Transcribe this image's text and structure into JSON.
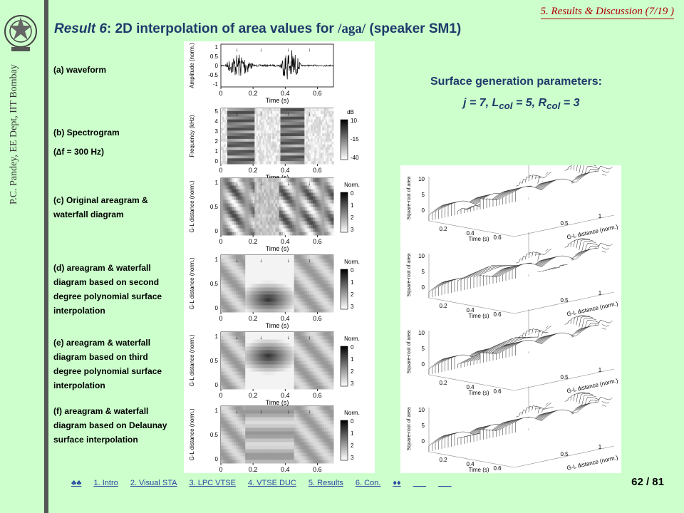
{
  "header": {
    "section": "5. Results & Discussion (7/19 )"
  },
  "title": {
    "prefix": "Result 6",
    "main": ": 2D interpolation of area values for ",
    "phoneme": "/aga/",
    "suffix": " (speaker SM1)"
  },
  "sidebar": {
    "author": "P.C. Pandey, EE Dept, IIT Bombay"
  },
  "labels": {
    "a": "(a) waveform",
    "b1": "(b) Spectrogram",
    "b2": "(∆f = 300 Hz)",
    "c": "(c) Original areagram & waterfall diagram",
    "d": "(d) areagram & waterfall diagram based on second degree polynomial surface interpolation",
    "e": "(e) areagram & waterfall diagram based on third degree polynomial surface interpolation",
    "f": "(f) areagram & waterfall diagram based on Delaunay surface interpolation"
  },
  "params": {
    "title": "Surface generation parameters:",
    "value": "j = 7, Lcol = 5, Rcol = 3"
  },
  "plots": {
    "time_label": "Time (s)",
    "time_ticks": [
      "0",
      "0.2",
      "0.4",
      "0.6"
    ],
    "amp_label": "Amplitude (norm.)",
    "amp_ticks": [
      "1",
      "0.5",
      "0",
      "-0.5",
      "-1"
    ],
    "freq_label": "Frequency (kHz)",
    "freq_ticks": [
      "5",
      "4",
      "3",
      "2",
      "1",
      "0"
    ],
    "db_label": "dB",
    "db_ticks": [
      "10",
      "-15",
      "-40"
    ],
    "gl_label": "G-L distance (norm.)",
    "gl_ticks": [
      "1",
      "0.5",
      "0"
    ],
    "norm_label": "Norm.",
    "norm_ticks": [
      "0",
      "1",
      "2",
      "3"
    ],
    "wf_z_label": "Square-root of area",
    "wf_z_ticks": [
      "10",
      "5",
      "0"
    ],
    "wf_t_ticks": [
      "0.2",
      "0.4",
      "0.6"
    ],
    "wf_gl_ticks": [
      "0.5",
      "1"
    ]
  },
  "nav": {
    "items": [
      "♣♣",
      "1. Intro",
      "2. Visual STA",
      "3. LPC VTSE",
      "4. VTSE DUC",
      "5. Results",
      "6. Con.",
      "♦♦",
      "___",
      "___"
    ]
  },
  "page": {
    "number": "62 / 81"
  }
}
